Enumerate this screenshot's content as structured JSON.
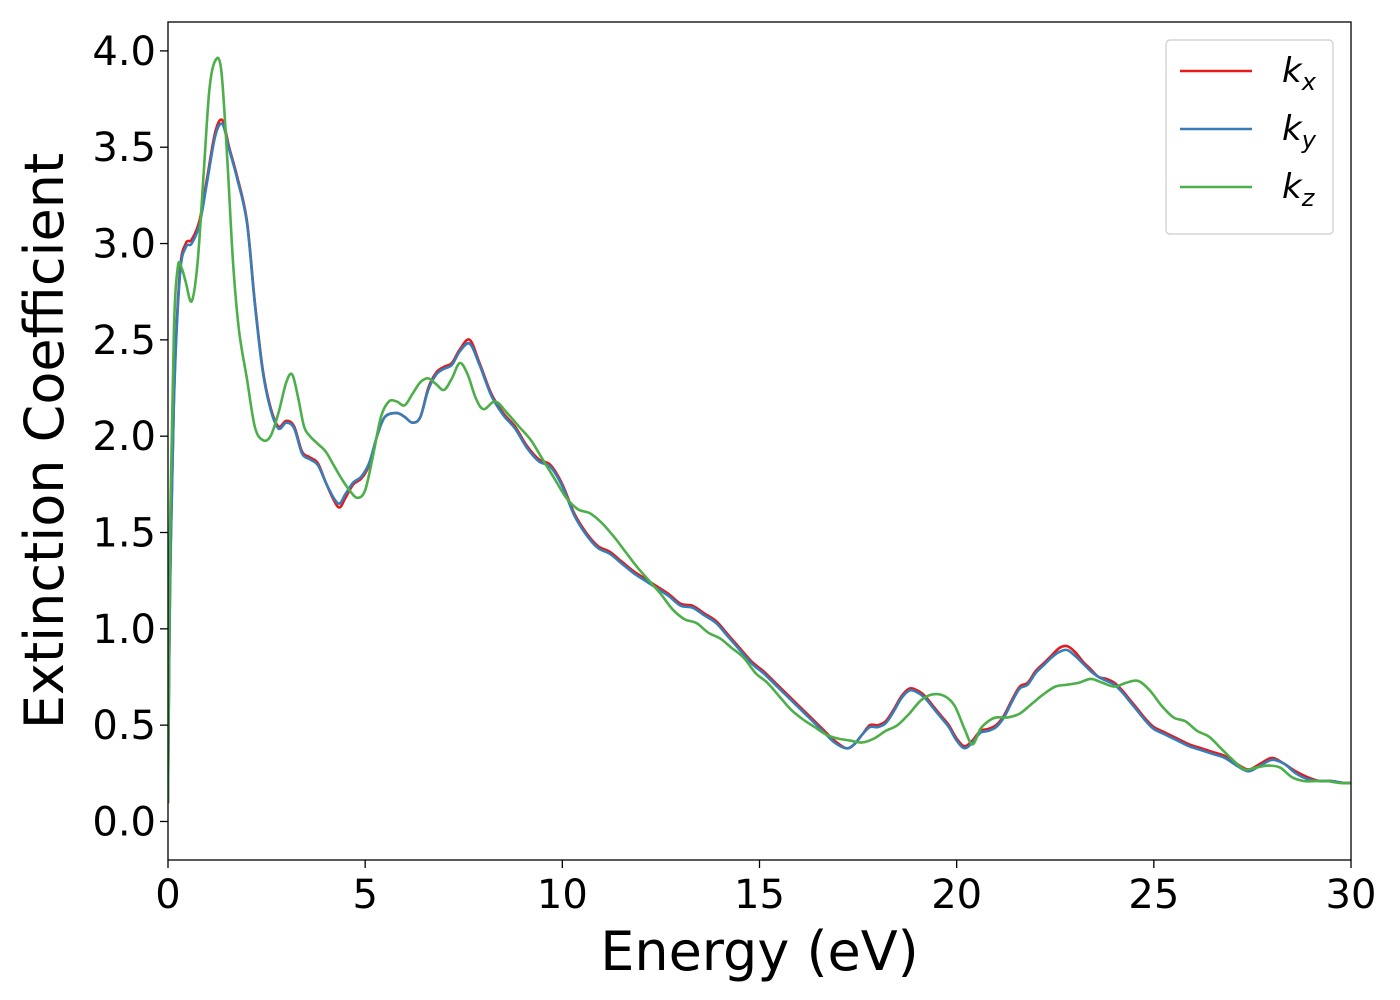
{
  "chart_data": {
    "type": "line",
    "xlabel": "Energy (eV)",
    "ylabel": "Extinction Coefficient",
    "xlim": [
      0,
      30
    ],
    "ylim": [
      -0.2,
      4.15
    ],
    "xticks": [
      0,
      5,
      10,
      15,
      20,
      25,
      30
    ],
    "xtick_labels": [
      "0",
      "5",
      "10",
      "15",
      "20",
      "25",
      "30"
    ],
    "yticks": [
      0.0,
      0.5,
      1.0,
      1.5,
      2.0,
      2.5,
      3.0,
      3.5,
      4.0
    ],
    "ytick_labels": [
      "0.0",
      "0.5",
      "1.0",
      "1.5",
      "2.0",
      "2.5",
      "3.0",
      "3.5",
      "4.0"
    ],
    "grid": false,
    "legend_position": "top-right",
    "series": [
      {
        "name": "k",
        "subscript": "x",
        "color": "#e41a1c",
        "x": [
          0,
          0.05,
          0.15,
          0.3,
          0.45,
          0.6,
          0.8,
          1.0,
          1.2,
          1.38,
          1.55,
          1.75,
          2.0,
          2.2,
          2.4,
          2.6,
          2.8,
          3.0,
          3.2,
          3.4,
          3.6,
          3.8,
          4.0,
          4.2,
          4.35,
          4.5,
          4.7,
          4.9,
          5.1,
          5.3,
          5.5,
          5.8,
          6.0,
          6.2,
          6.4,
          6.6,
          6.8,
          7.0,
          7.2,
          7.4,
          7.65,
          7.9,
          8.2,
          8.5,
          8.8,
          9.1,
          9.4,
          9.7,
          10.0,
          10.3,
          10.6,
          10.9,
          11.2,
          11.5,
          11.8,
          12.1,
          12.4,
          12.7,
          13.0,
          13.3,
          13.6,
          13.9,
          14.2,
          14.5,
          14.8,
          15.1,
          15.4,
          15.7,
          16.0,
          16.3,
          16.6,
          16.9,
          17.2,
          17.4,
          17.6,
          17.8,
          18.0,
          18.2,
          18.4,
          18.6,
          18.8,
          19.0,
          19.2,
          19.4,
          19.6,
          19.8,
          20.0,
          20.2,
          20.4,
          20.6,
          20.8,
          21.0,
          21.2,
          21.4,
          21.6,
          21.8,
          22.0,
          22.2,
          22.4,
          22.6,
          22.8,
          23.0,
          23.2,
          23.4,
          23.6,
          23.8,
          24.0,
          24.2,
          24.4,
          24.6,
          24.8,
          25.0,
          25.3,
          25.6,
          25.9,
          26.2,
          26.5,
          26.8,
          27.1,
          27.4,
          27.7,
          28.0,
          28.3,
          28.6,
          28.9,
          29.2,
          29.5,
          29.8,
          30.0
        ],
        "y": [
          0.1,
          1.2,
          2.2,
          2.85,
          3.0,
          3.02,
          3.12,
          3.35,
          3.58,
          3.64,
          3.5,
          3.35,
          3.12,
          2.7,
          2.35,
          2.15,
          2.05,
          2.08,
          2.05,
          1.92,
          1.89,
          1.86,
          1.76,
          1.67,
          1.63,
          1.68,
          1.75,
          1.78,
          1.85,
          2.0,
          2.1,
          2.12,
          2.1,
          2.07,
          2.1,
          2.25,
          2.33,
          2.36,
          2.38,
          2.45,
          2.5,
          2.38,
          2.22,
          2.12,
          2.05,
          1.95,
          1.88,
          1.85,
          1.75,
          1.6,
          1.5,
          1.43,
          1.4,
          1.35,
          1.3,
          1.26,
          1.22,
          1.18,
          1.13,
          1.12,
          1.08,
          1.04,
          0.97,
          0.9,
          0.83,
          0.78,
          0.72,
          0.66,
          0.6,
          0.54,
          0.48,
          0.42,
          0.38,
          0.4,
          0.45,
          0.5,
          0.5,
          0.52,
          0.58,
          0.65,
          0.69,
          0.68,
          0.65,
          0.6,
          0.55,
          0.5,
          0.43,
          0.39,
          0.42,
          0.47,
          0.48,
          0.5,
          0.55,
          0.63,
          0.7,
          0.72,
          0.78,
          0.82,
          0.86,
          0.9,
          0.91,
          0.88,
          0.83,
          0.79,
          0.75,
          0.74,
          0.72,
          0.68,
          0.63,
          0.58,
          0.53,
          0.49,
          0.46,
          0.43,
          0.4,
          0.38,
          0.36,
          0.34,
          0.3,
          0.27,
          0.3,
          0.33,
          0.3,
          0.26,
          0.23,
          0.21,
          0.21,
          0.2,
          0.2
        ]
      },
      {
        "name": "k",
        "subscript": "y",
        "color": "#377eb8",
        "x": [
          0,
          0.05,
          0.15,
          0.3,
          0.45,
          0.6,
          0.8,
          1.0,
          1.2,
          1.38,
          1.55,
          1.75,
          2.0,
          2.2,
          2.4,
          2.6,
          2.8,
          3.0,
          3.2,
          3.4,
          3.6,
          3.8,
          4.0,
          4.2,
          4.35,
          4.5,
          4.7,
          4.9,
          5.1,
          5.3,
          5.5,
          5.8,
          6.0,
          6.2,
          6.4,
          6.6,
          6.8,
          7.0,
          7.2,
          7.4,
          7.65,
          7.9,
          8.2,
          8.5,
          8.8,
          9.1,
          9.4,
          9.7,
          10.0,
          10.3,
          10.6,
          10.9,
          11.2,
          11.5,
          11.8,
          12.1,
          12.4,
          12.7,
          13.0,
          13.3,
          13.6,
          13.9,
          14.2,
          14.5,
          14.8,
          15.1,
          15.4,
          15.7,
          16.0,
          16.3,
          16.6,
          16.9,
          17.2,
          17.4,
          17.6,
          17.8,
          18.0,
          18.2,
          18.4,
          18.6,
          18.8,
          19.0,
          19.2,
          19.4,
          19.6,
          19.8,
          20.0,
          20.2,
          20.4,
          20.6,
          20.8,
          21.0,
          21.2,
          21.4,
          21.6,
          21.8,
          22.0,
          22.2,
          22.4,
          22.6,
          22.8,
          23.0,
          23.2,
          23.4,
          23.6,
          23.8,
          24.0,
          24.2,
          24.4,
          24.6,
          24.8,
          25.0,
          25.3,
          25.6,
          25.9,
          26.2,
          26.5,
          26.8,
          27.1,
          27.4,
          27.7,
          28.0,
          28.3,
          28.6,
          28.9,
          29.2,
          29.5,
          29.8,
          30.0
        ],
        "y": [
          0.1,
          1.18,
          2.18,
          2.83,
          2.98,
          3.0,
          3.1,
          3.33,
          3.56,
          3.62,
          3.49,
          3.34,
          3.11,
          2.69,
          2.34,
          2.14,
          2.04,
          2.07,
          2.04,
          1.91,
          1.88,
          1.85,
          1.76,
          1.68,
          1.65,
          1.7,
          1.76,
          1.79,
          1.86,
          2.0,
          2.1,
          2.12,
          2.1,
          2.07,
          2.1,
          2.24,
          2.32,
          2.35,
          2.37,
          2.44,
          2.48,
          2.37,
          2.21,
          2.11,
          2.04,
          1.94,
          1.87,
          1.84,
          1.74,
          1.59,
          1.49,
          1.42,
          1.39,
          1.34,
          1.29,
          1.25,
          1.21,
          1.17,
          1.12,
          1.11,
          1.07,
          1.03,
          0.96,
          0.89,
          0.82,
          0.77,
          0.71,
          0.65,
          0.59,
          0.53,
          0.47,
          0.41,
          0.38,
          0.4,
          0.45,
          0.49,
          0.49,
          0.51,
          0.57,
          0.64,
          0.68,
          0.67,
          0.64,
          0.59,
          0.54,
          0.49,
          0.42,
          0.38,
          0.41,
          0.46,
          0.47,
          0.49,
          0.54,
          0.62,
          0.69,
          0.71,
          0.77,
          0.81,
          0.85,
          0.88,
          0.89,
          0.86,
          0.82,
          0.78,
          0.75,
          0.73,
          0.71,
          0.67,
          0.62,
          0.57,
          0.52,
          0.48,
          0.45,
          0.42,
          0.39,
          0.37,
          0.35,
          0.33,
          0.29,
          0.26,
          0.29,
          0.32,
          0.3,
          0.25,
          0.22,
          0.21,
          0.21,
          0.2,
          0.2
        ]
      },
      {
        "name": "k",
        "subscript": "z",
        "color": "#4daf4a",
        "x": [
          0,
          0.05,
          0.15,
          0.25,
          0.35,
          0.45,
          0.6,
          0.75,
          0.9,
          1.05,
          1.2,
          1.35,
          1.5,
          1.65,
          1.8,
          2.0,
          2.2,
          2.4,
          2.6,
          2.8,
          3.0,
          3.15,
          3.3,
          3.45,
          3.6,
          3.8,
          4.0,
          4.2,
          4.4,
          4.6,
          4.8,
          5.0,
          5.2,
          5.4,
          5.6,
          5.8,
          6.0,
          6.2,
          6.4,
          6.6,
          6.8,
          7.0,
          7.2,
          7.4,
          7.6,
          7.8,
          8.0,
          8.3,
          8.6,
          8.9,
          9.2,
          9.5,
          9.8,
          10.1,
          10.4,
          10.7,
          11.0,
          11.3,
          11.6,
          11.9,
          12.2,
          12.5,
          12.8,
          13.1,
          13.4,
          13.7,
          14.0,
          14.3,
          14.6,
          14.9,
          15.2,
          15.5,
          15.8,
          16.1,
          16.4,
          16.7,
          17.0,
          17.3,
          17.6,
          17.9,
          18.2,
          18.5,
          18.8,
          19.1,
          19.4,
          19.7,
          19.95,
          20.2,
          20.4,
          20.6,
          20.8,
          21.0,
          21.3,
          21.6,
          21.9,
          22.2,
          22.5,
          22.8,
          23.1,
          23.4,
          23.7,
          24.0,
          24.3,
          24.6,
          24.9,
          25.2,
          25.5,
          25.8,
          26.1,
          26.4,
          26.7,
          27.0,
          27.3,
          27.6,
          27.9,
          28.2,
          28.5,
          28.8,
          29.1,
          29.4,
          29.7,
          30.0
        ],
        "y": [
          0.1,
          1.5,
          2.55,
          2.88,
          2.87,
          2.8,
          2.7,
          2.9,
          3.35,
          3.8,
          3.95,
          3.9,
          3.45,
          2.9,
          2.55,
          2.3,
          2.05,
          1.98,
          2.0,
          2.12,
          2.28,
          2.32,
          2.2,
          2.05,
          2.0,
          1.96,
          1.92,
          1.85,
          1.78,
          1.72,
          1.68,
          1.72,
          1.9,
          2.1,
          2.18,
          2.18,
          2.16,
          2.22,
          2.28,
          2.3,
          2.27,
          2.24,
          2.3,
          2.38,
          2.32,
          2.2,
          2.14,
          2.18,
          2.12,
          2.05,
          1.98,
          1.88,
          1.78,
          1.68,
          1.62,
          1.6,
          1.55,
          1.48,
          1.4,
          1.32,
          1.25,
          1.18,
          1.1,
          1.05,
          1.03,
          0.98,
          0.95,
          0.9,
          0.85,
          0.77,
          0.72,
          0.65,
          0.58,
          0.53,
          0.49,
          0.45,
          0.43,
          0.42,
          0.41,
          0.43,
          0.47,
          0.5,
          0.56,
          0.63,
          0.66,
          0.65,
          0.6,
          0.48,
          0.4,
          0.48,
          0.52,
          0.54,
          0.54,
          0.56,
          0.61,
          0.66,
          0.7,
          0.71,
          0.72,
          0.74,
          0.72,
          0.7,
          0.72,
          0.73,
          0.68,
          0.6,
          0.54,
          0.52,
          0.47,
          0.44,
          0.38,
          0.32,
          0.27,
          0.28,
          0.29,
          0.28,
          0.23,
          0.21,
          0.21,
          0.21,
          0.2,
          0.2
        ]
      }
    ]
  }
}
